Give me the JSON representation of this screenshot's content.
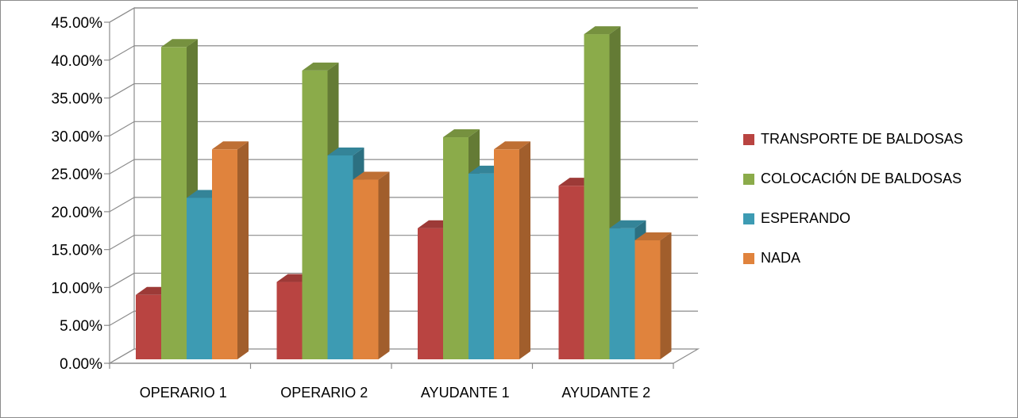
{
  "chart_data": {
    "type": "bar",
    "style": "3d-clustered-column",
    "categories": [
      "OPERARIO 1",
      "OPERARIO 2",
      "AYUDANTE 1",
      "AYUDANTE 2"
    ],
    "series": [
      {
        "name": "TRANSPORTE DE BALDOSAS",
        "color": "#b94441",
        "values": [
          8.5,
          10.2,
          17.3,
          22.9
        ]
      },
      {
        "name": "COLOCACIÓN DE BALDOSAS",
        "color": "#8bab4a",
        "values": [
          41.2,
          38.1,
          29.3,
          42.9
        ]
      },
      {
        "name": "ESPERANDO",
        "color": "#3d9bb3",
        "values": [
          21.3,
          26.9,
          24.5,
          17.3
        ]
      },
      {
        "name": "NADA",
        "color": "#e0833d",
        "values": [
          27.7,
          23.7,
          27.7,
          15.7
        ]
      }
    ],
    "ylim": [
      0,
      45
    ],
    "yticks": [
      "0.00%",
      "5.00%",
      "10.00%",
      "15.00%",
      "20.00%",
      "25.00%",
      "30.00%",
      "35.00%",
      "40.00%",
      "45.00%"
    ],
    "grid": true,
    "legend_position": "right"
  }
}
